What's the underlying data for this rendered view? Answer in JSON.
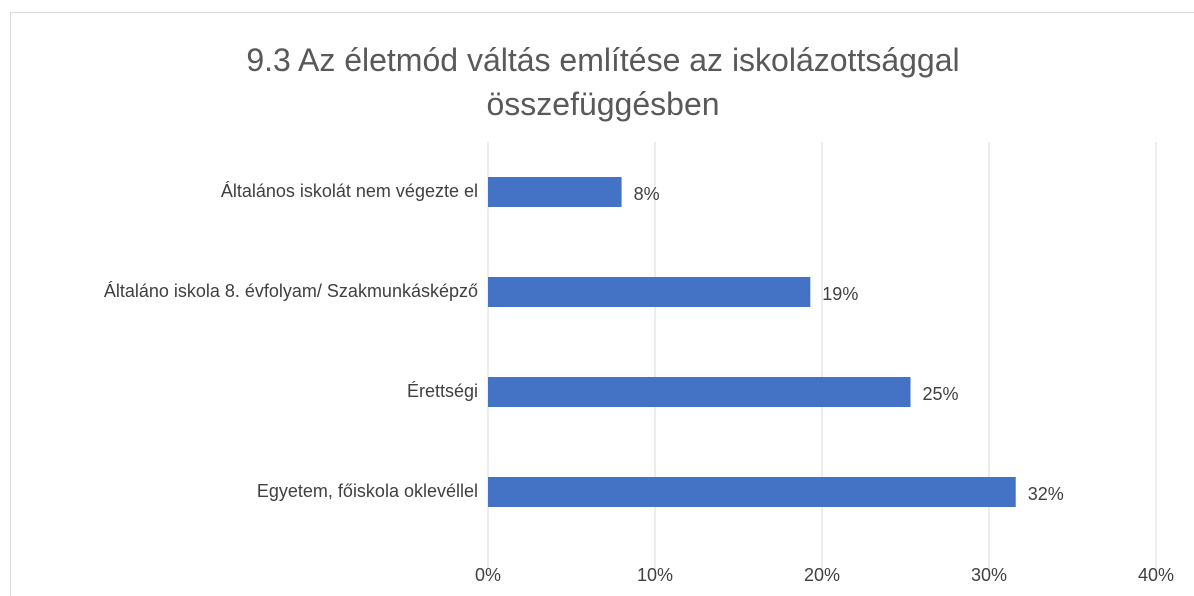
{
  "chart_data": {
    "type": "bar",
    "orientation": "horizontal",
    "title": "9.3 Az életmód váltás említése az iskolázottsággal összefüggésben",
    "categories": [
      "Általános iskolát nem végezte el",
      "Általáno iskola 8. évfolyam/ Szakmunkásképző",
      "Érettségi",
      "Egyetem, főiskola oklevéllel"
    ],
    "values": [
      8,
      19.3,
      25.3,
      31.6
    ],
    "value_labels": [
      "8%",
      "19%",
      "25%",
      "32%"
    ],
    "color": "#4472c4",
    "xlim": [
      0,
      40
    ],
    "xticks": [
      {
        "value": 0,
        "label": "0%"
      },
      {
        "value": 10,
        "label": "10%"
      },
      {
        "value": 20,
        "label": "20%"
      },
      {
        "value": 30,
        "label": "30%"
      },
      {
        "value": 40,
        "label": "40%"
      }
    ],
    "grid": true
  }
}
